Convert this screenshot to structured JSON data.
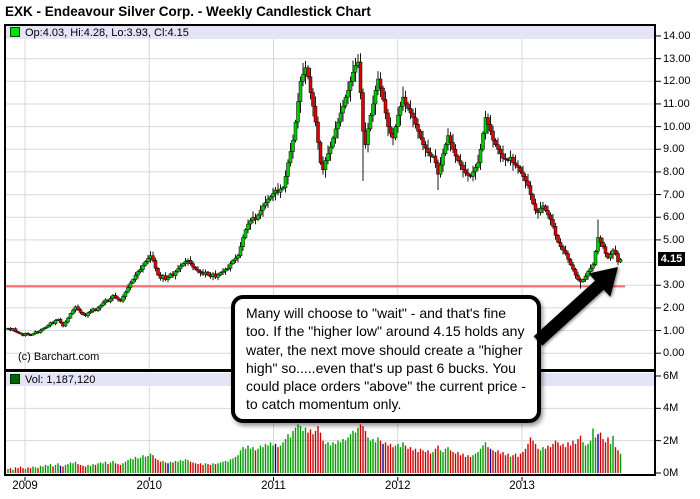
{
  "title": "EXK - Endeavour Silver Corp. - Weekly Candlestick Chart",
  "price_pane": {
    "legend": {
      "ohlc_label": "Op:4.03, Hi:4.28, Lo:3.93, Cl:4.15"
    },
    "copyright": "(c) Barchart.com",
    "last_price_label": "4.15"
  },
  "volume_pane": {
    "legend": {
      "vol_label": "Vol: 1,187,120"
    }
  },
  "axes": {
    "price_ticks": [
      {
        "value": 14,
        "label": "14.00"
      },
      {
        "value": 13,
        "label": "13.00"
      },
      {
        "value": 12,
        "label": "12.00"
      },
      {
        "value": 11,
        "label": "11.00"
      },
      {
        "value": 10,
        "label": "10.00"
      },
      {
        "value": 9,
        "label": "9.00"
      },
      {
        "value": 8,
        "label": "8.00"
      },
      {
        "value": 7,
        "label": "7.00"
      },
      {
        "value": 6,
        "label": "6.00"
      },
      {
        "value": 5,
        "label": "5.00"
      },
      {
        "value": 3,
        "label": "3.00"
      },
      {
        "value": 2,
        "label": "2.00"
      },
      {
        "value": 1,
        "label": "1.00"
      },
      {
        "value": 0,
        "label": "0.00"
      }
    ],
    "volume_ticks": [
      {
        "value": 6,
        "label": "6M"
      },
      {
        "value": 4,
        "label": "4M"
      },
      {
        "value": 2,
        "label": "2M"
      },
      {
        "value": 0,
        "label": "0M"
      }
    ],
    "year_labels": [
      "2009",
      "2010",
      "2011",
      "2012",
      "2013"
    ]
  },
  "annotation": {
    "text": "Many will choose to \"wait\" - and that's fine too. If the \"higher low\" around 4.15 holds any water, the next move should create a \"higher high\" so.....even that's up past 6 bucks. You could place orders \"above\" the current price - to catch momentum only."
  },
  "colors": {
    "candle_up": "#00cc00",
    "candle_down": "#dd0000",
    "vol_up": "#009900",
    "vol_down": "#cc0000",
    "vol_neutral": "#000099",
    "support_line": "#f66a6a",
    "legend_bg": "#e4e4f7",
    "grid": "#d8d8d8",
    "badge_bg": "#000000"
  },
  "chart_data": {
    "type": "candlestick+volume",
    "symbol": "EXK",
    "timeframe": "weekly",
    "title": "EXK - Endeavour Silver Corp. - Weekly Candlestick Chart",
    "price_ylim": [
      0,
      14
    ],
    "volume_ylim_millions": [
      0,
      6
    ],
    "x_years": [
      2009,
      2010,
      2011,
      2012,
      2013
    ],
    "grid": true,
    "support_line_price": 2.95,
    "last_week": {
      "open": 4.03,
      "high": 4.28,
      "low": 3.93,
      "close": 4.15,
      "volume": 1187120
    },
    "closes": [
      1.1,
      1.02,
      1.08,
      0.95,
      0.9,
      0.85,
      0.78,
      0.88,
      0.82,
      0.8,
      0.86,
      0.95,
      0.9,
      1.02,
      1.08,
      1.15,
      1.22,
      1.35,
      1.3,
      1.45,
      1.5,
      1.35,
      1.2,
      1.38,
      1.55,
      1.75,
      1.9,
      2.05,
      1.92,
      1.8,
      1.7,
      1.65,
      1.78,
      1.85,
      1.95,
      1.88,
      2.0,
      2.1,
      2.22,
      2.35,
      2.28,
      2.42,
      2.55,
      2.45,
      2.38,
      2.3,
      2.5,
      2.7,
      2.9,
      3.1,
      3.25,
      3.45,
      3.6,
      3.7,
      3.88,
      4.05,
      4.18,
      4.3,
      4.1,
      3.75,
      3.45,
      3.3,
      3.42,
      3.25,
      3.35,
      3.5,
      3.42,
      3.6,
      3.72,
      3.85,
      3.95,
      4.05,
      4.1,
      3.95,
      3.8,
      3.7,
      3.62,
      3.55,
      3.48,
      3.58,
      3.45,
      3.38,
      3.5,
      3.35,
      3.45,
      3.55,
      3.62,
      3.7,
      3.75,
      3.95,
      4.1,
      4.2,
      4.3,
      4.7,
      5.1,
      5.45,
      5.7,
      5.85,
      6.0,
      5.9,
      6.1,
      6.3,
      6.5,
      6.65,
      6.8,
      6.9,
      7.05,
      7.2,
      7.1,
      7.25,
      7.3,
      7.8,
      8.4,
      8.9,
      9.4,
      10.2,
      11.1,
      12.0,
      12.3,
      12.6,
      12.2,
      11.5,
      10.9,
      10.2,
      9.3,
      8.4,
      8.1,
      8.5,
      8.8,
      9.1,
      9.5,
      9.9,
      10.2,
      10.6,
      10.9,
      11.3,
      11.6,
      12.0,
      12.4,
      12.7,
      12.85,
      11.5,
      9.8,
      9.2,
      9.9,
      10.5,
      11.0,
      11.6,
      12.1,
      11.7,
      11.2,
      10.6,
      10.0,
      9.7,
      9.5,
      10.0,
      10.5,
      10.9,
      11.3,
      11.0,
      10.8,
      10.6,
      10.4,
      10.1,
      9.8,
      9.5,
      9.2,
      9.05,
      8.85,
      8.7,
      8.7,
      8.4,
      7.9,
      8.3,
      8.8,
      9.2,
      9.6,
      9.3,
      9.0,
      8.7,
      8.5,
      8.3,
      8.1,
      7.95,
      7.85,
      7.8,
      8.0,
      8.2,
      8.4,
      9.0,
      9.7,
      10.4,
      10.1,
      9.8,
      9.4,
      9.2,
      9.0,
      8.8,
      8.6,
      8.55,
      8.5,
      8.65,
      8.4,
      8.3,
      8.2,
      8.0,
      7.8,
      7.6,
      7.4,
      7.0,
      6.6,
      6.3,
      6.2,
      6.4,
      6.5,
      6.3,
      6.1,
      5.9,
      5.6,
      5.2,
      4.9,
      4.7,
      4.55,
      4.4,
      4.15,
      3.9,
      3.7,
      3.45,
      3.25,
      3.15,
      3.25,
      3.4,
      3.6,
      3.75,
      3.9,
      4.5,
      5.1,
      4.9,
      4.7,
      4.4,
      4.2,
      4.35,
      4.55,
      4.4,
      4.03,
      4.15
    ],
    "volumes_millions": [
      0.25,
      0.3,
      0.2,
      0.35,
      0.3,
      0.4,
      0.3,
      0.25,
      0.35,
      0.3,
      0.4,
      0.35,
      0.3,
      0.45,
      0.4,
      0.5,
      0.45,
      0.55,
      0.4,
      0.5,
      0.6,
      0.45,
      0.4,
      0.5,
      0.55,
      0.65,
      0.6,
      0.7,
      0.55,
      0.5,
      0.45,
      0.4,
      0.5,
      0.45,
      0.55,
      0.5,
      0.6,
      0.65,
      0.6,
      0.7,
      0.55,
      0.65,
      0.75,
      0.6,
      0.55,
      0.5,
      0.6,
      0.7,
      0.8,
      0.9,
      0.85,
      1.0,
      0.9,
      0.95,
      1.1,
      1.0,
      1.05,
      1.2,
      1.1,
      0.9,
      0.8,
      0.7,
      0.75,
      0.65,
      0.6,
      0.7,
      0.65,
      0.75,
      0.7,
      0.8,
      0.75,
      0.85,
      0.8,
      0.7,
      0.65,
      0.6,
      0.55,
      0.6,
      0.5,
      0.6,
      0.55,
      0.5,
      0.6,
      0.55,
      0.6,
      0.65,
      0.7,
      0.75,
      0.7,
      0.85,
      0.9,
      1.0,
      1.1,
      1.4,
      1.6,
      1.5,
      1.7,
      1.5,
      1.6,
      1.4,
      1.5,
      1.7,
      1.6,
      1.8,
      1.7,
      1.9,
      1.7,
      1.8,
      1.6,
      1.7,
      1.9,
      2.1,
      2.4,
      2.2,
      2.6,
      2.8,
      3.0,
      2.9,
      2.6,
      2.8,
      2.5,
      2.7,
      2.4,
      2.6,
      2.9,
      2.5,
      2.0,
      1.8,
      1.9,
      1.7,
      1.9,
      1.8,
      2.0,
      1.9,
      2.1,
      2.0,
      2.2,
      2.4,
      2.6,
      2.5,
      2.8,
      3.0,
      2.9,
      2.6,
      2.2,
      2.0,
      2.1,
      1.9,
      2.2,
      2.0,
      1.8,
      1.9,
      1.7,
      1.8,
      1.6,
      1.7,
      1.8,
      1.6,
      1.9,
      1.7,
      1.5,
      1.6,
      1.4,
      1.5,
      1.3,
      1.5,
      1.4,
      1.3,
      1.4,
      1.2,
      1.3,
      1.5,
      1.7,
      1.4,
      1.3,
      1.5,
      1.6,
      1.4,
      1.3,
      1.2,
      1.3,
      1.1,
      1.2,
      1.0,
      1.1,
      1.0,
      1.1,
      1.2,
      1.3,
      1.5,
      1.7,
      1.9,
      1.6,
      1.5,
      1.4,
      1.3,
      1.4,
      1.2,
      1.3,
      1.1,
      1.2,
      1.0,
      1.1,
      1.2,
      1.0,
      1.2,
      1.3,
      1.5,
      1.8,
      2.2,
      2.0,
      1.8,
      1.5,
      1.4,
      1.6,
      1.5,
      1.7,
      1.6,
      1.8,
      2.0,
      1.9,
      1.7,
      1.8,
      1.6,
      1.9,
      1.7,
      2.0,
      1.8,
      2.1,
      2.3,
      1.9,
      1.7,
      1.8,
      2.0,
      2.75,
      2.2,
      2.4,
      2.5,
      2.1,
      1.9,
      2.2,
      1.8,
      2.3,
      1.6,
      1.4,
      1.19
    ],
    "wick_overrides": {
      "57": {
        "high": 4.5
      },
      "119": {
        "high": 12.9
      },
      "140": {
        "high": 13.2
      },
      "142": {
        "low": 7.6
      },
      "148": {
        "high": 12.45
      },
      "172": {
        "low": 7.2
      },
      "191": {
        "high": 10.7
      },
      "229": {
        "low": 2.85
      },
      "236": {
        "high": 5.9
      }
    }
  }
}
